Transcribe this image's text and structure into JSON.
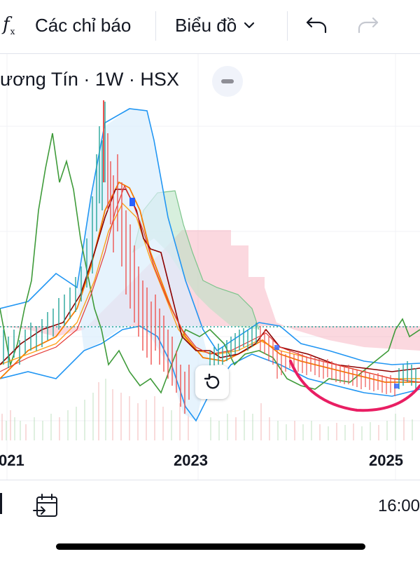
{
  "toolbar": {
    "indicators_label": "Các chỉ báo",
    "chart_type_label": "Biểu đồ",
    "icons": [
      "function-icon",
      "chevron-down-icon",
      "undo-icon",
      "redo-icon"
    ]
  },
  "legend": {
    "text": "ương Tín · 1W · HSX"
  },
  "axis": {
    "x_labels": [
      "021",
      "2023",
      "2025"
    ]
  },
  "bottom": {
    "time": "16:00",
    "icons": [
      "goto-date-icon"
    ]
  },
  "colors": {
    "accent": "#2962ff",
    "cloud_red": "#f7a8b8",
    "cloud_green": "#b7e1c1",
    "bollinger_fill": "#dceefc",
    "green_line": "#3f9b3a",
    "blue_line": "#2196f3",
    "orange_line": "#f57c00",
    "dark_red_line": "#8b0000",
    "arc": "#e91e63"
  }
}
